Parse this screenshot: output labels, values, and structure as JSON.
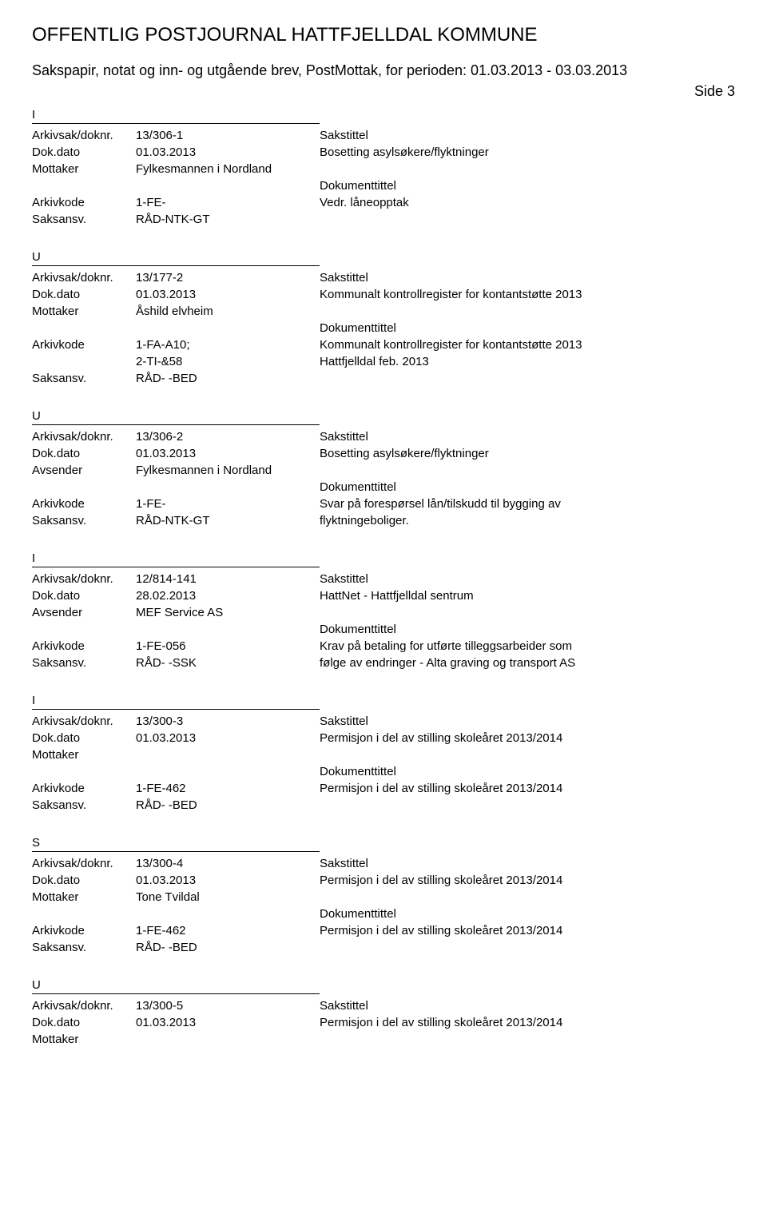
{
  "header": {
    "title": "OFFENTLIG POSTJOURNAL HATTFJELLDAL KOMMUNE",
    "subtitle": "Sakspapir, notat og inn- og utgående brev, PostMottak, for perioden: 01.03.2013 - 03.03.2013",
    "side": "Side 3"
  },
  "labels": {
    "arkivsak": "Arkivsak/doknr.",
    "dokdato": "Dok.dato",
    "mottaker": "Mottaker",
    "avsender": "Avsender",
    "arkivkode": "Arkivkode",
    "saksansv": "Saksansv.",
    "sakstittel": "Sakstittel",
    "dokumenttittel": "Dokumenttittel"
  },
  "entries": [
    {
      "type": "I",
      "arkivsak": "13/306-1",
      "dokdato": "01.03.2013",
      "party_label": "Mottaker",
      "party": "Fylkesmannen i Nordland",
      "arkivkode": "1-FE-",
      "arkivkode2": "",
      "saksansv": "RÅD-NTK-GT",
      "sakstittel": "Bosetting asylsøkere/flyktninger",
      "dokumenttittel": "Vedr. låneopptak",
      "dokumenttittel2": ""
    },
    {
      "type": "U",
      "arkivsak": "13/177-2",
      "dokdato": "01.03.2013",
      "party_label": "Mottaker",
      "party": "Åshild elvheim",
      "arkivkode": "1-FA-A10;",
      "arkivkode2": "2-TI-&58",
      "saksansv": "RÅD- -BED",
      "sakstittel": "Kommunalt kontrollregister for kontantstøtte 2013",
      "dokumenttittel": "Kommunalt kontrollregister for kontantstøtte 2013",
      "dokumenttittel2": "Hattfjelldal feb. 2013"
    },
    {
      "type": "U",
      "arkivsak": "13/306-2",
      "dokdato": "01.03.2013",
      "party_label": "Avsender",
      "party": "Fylkesmannen i Nordland",
      "arkivkode": "1-FE-",
      "arkivkode2": "",
      "saksansv": "RÅD-NTK-GT",
      "sakstittel": "Bosetting asylsøkere/flyktninger",
      "dokumenttittel": "Svar på forespørsel lån/tilskudd til bygging av",
      "dokumenttittel2": "flyktningeboliger."
    },
    {
      "type": "I",
      "arkivsak": "12/814-141",
      "dokdato": "28.02.2013",
      "party_label": "Avsender",
      "party": "MEF Service AS",
      "arkivkode": "1-FE-056",
      "arkivkode2": "",
      "saksansv": "RÅD- -SSK",
      "sakstittel": "HattNet - Hattfjelldal sentrum",
      "dokumenttittel": "Krav på betaling for utførte tilleggsarbeider som",
      "dokumenttittel2": "følge av endringer - Alta graving og transport AS"
    },
    {
      "type": "I",
      "arkivsak": "13/300-3",
      "dokdato": "01.03.2013",
      "party_label": "Mottaker",
      "party": "",
      "arkivkode": "1-FE-462",
      "arkivkode2": "",
      "saksansv": "RÅD- -BED",
      "sakstittel": "Permisjon i del av stilling skoleåret 2013/2014",
      "dokumenttittel": "Permisjon i del av stilling skoleåret 2013/2014",
      "dokumenttittel2": ""
    },
    {
      "type": "S",
      "arkivsak": "13/300-4",
      "dokdato": "01.03.2013",
      "party_label": "Mottaker",
      "party": "Tone Tvildal",
      "arkivkode": "1-FE-462",
      "arkivkode2": "",
      "saksansv": "RÅD- -BED",
      "sakstittel": "Permisjon i del av stilling skoleåret 2013/2014",
      "dokumenttittel": "Permisjon i del av stilling skoleåret 2013/2014",
      "dokumenttittel2": ""
    },
    {
      "type": "U",
      "arkivsak": "13/300-5",
      "dokdato": "01.03.2013",
      "party_label": "Mottaker",
      "party": "",
      "arkivkode": "",
      "arkivkode2": "",
      "saksansv": "",
      "sakstittel": "Permisjon i del av stilling skoleåret 2013/2014",
      "dokumenttittel": "",
      "dokumenttittel2": "",
      "partial": true
    }
  ]
}
